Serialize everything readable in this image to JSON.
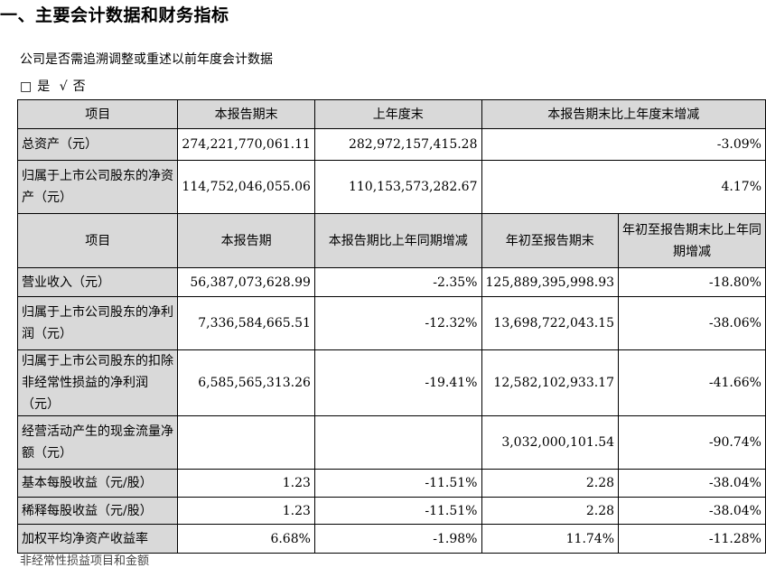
{
  "section_title": "一、主要会计数据和财务指标",
  "question": "公司是否需追溯调整或重述以前年度会计数据",
  "answer": {
    "box": "□",
    "yes": "是",
    "check": "√",
    "no": "否"
  },
  "table1": {
    "headers": [
      "项目",
      "本报告期末",
      "上年度末",
      "本报告期末比上年度末增减"
    ],
    "rows": [
      [
        "总资产（元）",
        "274,221,770,061.11",
        "282,972,157,415.28",
        "-3.09%"
      ],
      [
        "归属于上市公司股东的净资产（元）",
        "114,752,046,055.06",
        "110,153,573,282.67",
        "4.17%"
      ]
    ]
  },
  "table2": {
    "headers": [
      "项目",
      "本报告期",
      "本报告期比上年同期增减",
      "年初至报告期末",
      "年初至报告期末比上年同期增减"
    ],
    "rows": [
      [
        "营业收入（元）",
        "56,387,073,628.99",
        "-2.35%",
        "125,889,395,998.93",
        "-18.80%"
      ],
      [
        "归属于上市公司股东的净利润（元）",
        "7,336,584,665.51",
        "-12.32%",
        "13,698,722,043.15",
        "-38.06%"
      ],
      [
        "归属于上市公司股东的扣除非经常性损益的净利润（元）",
        "6,585,565,313.26",
        "-19.41%",
        "12,582,102,933.17",
        "-41.66%"
      ],
      [
        "经营活动产生的现金流量净额（元）",
        "",
        "",
        "3,032,000,101.54",
        "-90.74%"
      ],
      [
        "基本每股收益（元/股）",
        "1.23",
        "-11.51%",
        "2.28",
        "-38.04%"
      ],
      [
        "稀释每股收益（元/股）",
        "1.23",
        "-11.51%",
        "2.28",
        "-38.04%"
      ],
      [
        "加权平均净资产收益率",
        "6.68%",
        "-1.98%",
        "11.74%",
        "-11.28%"
      ]
    ]
  },
  "footer_text": "非经常性损益项目和金额"
}
